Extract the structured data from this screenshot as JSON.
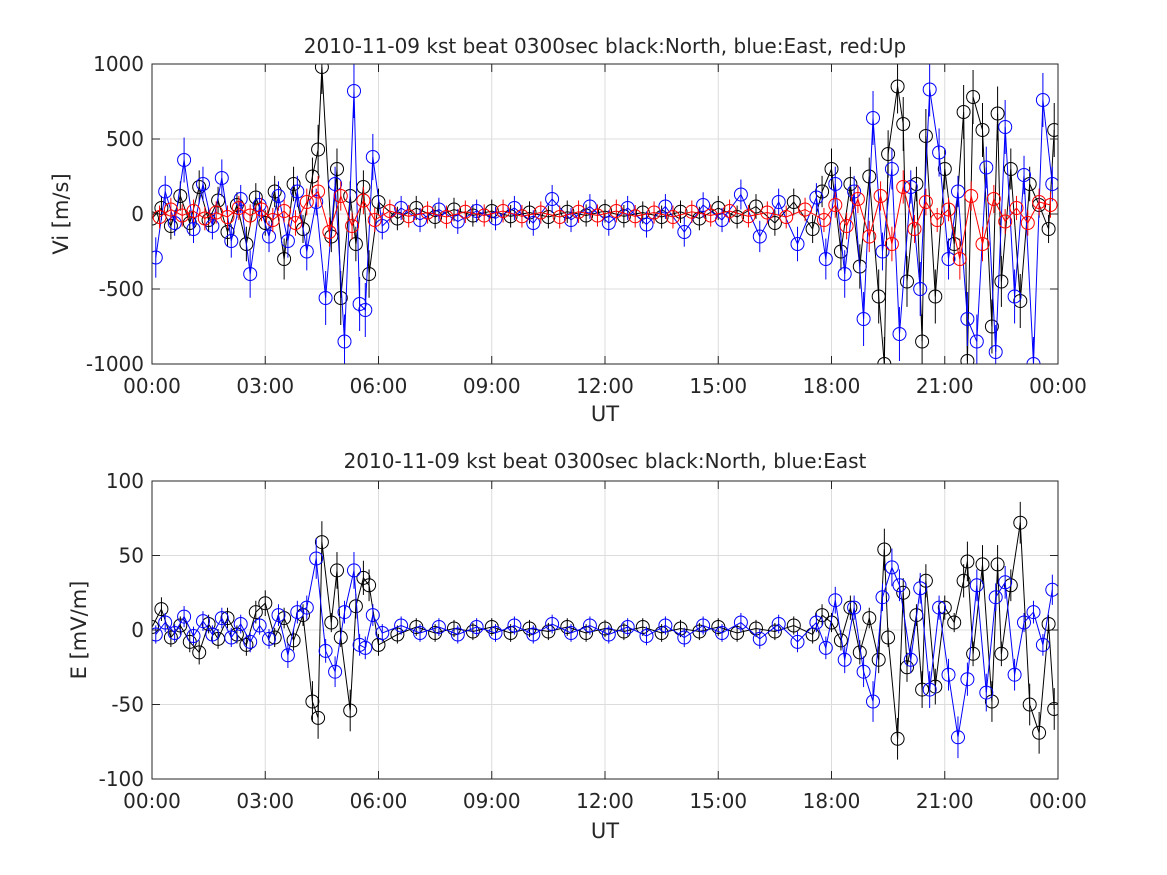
{
  "figure": {
    "panels": [
      {
        "title": "2010-11-09 kst beat 0300sec black:North, blue:East, red:Up",
        "ylabel": "Vi [m/s]",
        "xlabel": "UT"
      },
      {
        "title": "2010-11-09 kst beat 0300sec black:North, blue:East",
        "ylabel": "E [mV/m]",
        "xlabel": "UT"
      }
    ]
  },
  "chart_data": [
    {
      "type": "line",
      "title": "2010-11-09 kst beat 0300sec black:North, blue:East, red:Up",
      "xlabel": "UT",
      "ylabel": "Vi [m/s]",
      "xlim": [
        0,
        24
      ],
      "ylim": [
        -1000,
        1000
      ],
      "x_ticks": [
        0,
        3,
        6,
        9,
        12,
        15,
        18,
        21,
        24
      ],
      "x_tick_labels": [
        "00:00",
        "03:00",
        "06:00",
        "09:00",
        "12:00",
        "15:00",
        "18:00",
        "21:00",
        "00:00"
      ],
      "y_ticks": [
        1000,
        500,
        0,
        -500,
        -1000
      ],
      "y_tick_labels": [
        "1000",
        "500",
        "0",
        "-500",
        "-1000"
      ],
      "grid": true,
      "markers": "open-circle",
      "error_bars": true,
      "series": [
        {
          "color": "#000000",
          "x": [
            0.0,
            0.25,
            0.5,
            0.75,
            1.0,
            1.25,
            1.5,
            1.75,
            2.0,
            2.25,
            2.5,
            2.75,
            3.0,
            3.25,
            3.5,
            3.75,
            4.0,
            4.25,
            4.4,
            4.5,
            4.75,
            4.9,
            5.0,
            5.25,
            5.4,
            5.6,
            5.75,
            6.0,
            6.5,
            7.0,
            7.5,
            8.0,
            8.5,
            9.0,
            9.5,
            10.0,
            10.5,
            11.0,
            11.5,
            12.0,
            12.5,
            13.0,
            13.5,
            14.0,
            14.5,
            15.0,
            15.5,
            16.0,
            16.5,
            17.0,
            17.5,
            17.75,
            18.0,
            18.25,
            18.5,
            18.75,
            19.0,
            19.25,
            19.4,
            19.5,
            19.75,
            19.9,
            20.0,
            20.25,
            20.4,
            20.5,
            20.75,
            21.0,
            21.25,
            21.5,
            21.6,
            21.75,
            22.0,
            22.25,
            22.4,
            22.5,
            22.75,
            23.0,
            23.25,
            23.5,
            23.75,
            23.9
          ],
          "y": [
            -30,
            40,
            -80,
            120,
            -60,
            180,
            -40,
            90,
            -120,
            60,
            -200,
            110,
            -60,
            150,
            -300,
            200,
            -100,
            250,
            430,
            980,
            -150,
            300,
            -560,
            120,
            -200,
            180,
            -400,
            80,
            -30,
            40,
            -20,
            30,
            -10,
            20,
            -15,
            10,
            -20,
            15,
            -10,
            20,
            -15,
            10,
            -20,
            15,
            -30,
            40,
            -20,
            50,
            -60,
            80,
            -100,
            150,
            300,
            -250,
            200,
            -350,
            250,
            -550,
            -1000,
            400,
            850,
            600,
            -450,
            200,
            -850,
            520,
            -550,
            300,
            -200,
            680,
            -980,
            780,
            560,
            -750,
            670,
            -450,
            300,
            -580,
            200,
            60,
            -100,
            560
          ]
        },
        {
          "color": "#0000ff",
          "x": [
            0.1,
            0.35,
            0.6,
            0.85,
            1.1,
            1.35,
            1.6,
            1.85,
            2.1,
            2.35,
            2.6,
            2.85,
            3.1,
            3.35,
            3.6,
            3.85,
            4.1,
            4.35,
            4.6,
            4.85,
            5.1,
            5.35,
            5.5,
            5.65,
            5.85,
            6.1,
            6.6,
            7.1,
            7.6,
            8.1,
            8.6,
            9.1,
            9.6,
            10.1,
            10.6,
            11.1,
            11.6,
            12.1,
            12.6,
            13.1,
            13.6,
            14.1,
            14.6,
            15.1,
            15.6,
            16.1,
            16.6,
            17.1,
            17.6,
            17.85,
            18.1,
            18.35,
            18.6,
            18.85,
            19.1,
            19.35,
            19.6,
            19.8,
            20.1,
            20.35,
            20.6,
            20.85,
            21.1,
            21.35,
            21.6,
            21.85,
            22.1,
            22.35,
            22.6,
            22.85,
            23.1,
            23.35,
            23.6,
            23.85
          ],
          "y": [
            -290,
            150,
            -60,
            360,
            -100,
            200,
            -80,
            240,
            -180,
            100,
            -400,
            60,
            -150,
            120,
            -180,
            150,
            -250,
            80,
            -560,
            200,
            -850,
            820,
            -600,
            -640,
            380,
            -80,
            40,
            -40,
            30,
            -50,
            20,
            -30,
            40,
            -60,
            100,
            -40,
            50,
            -60,
            40,
            -70,
            50,
            -120,
            60,
            -40,
            130,
            -150,
            80,
            -200,
            110,
            -300,
            200,
            -400,
            150,
            -700,
            640,
            -250,
            300,
            -800,
            180,
            -500,
            830,
            410,
            -300,
            150,
            -700,
            -850,
            310,
            -920,
            580,
            -550,
            260,
            -1000,
            760,
            200
          ]
        },
        {
          "color": "#ff0000",
          "x": [
            0.2,
            0.5,
            0.8,
            1.1,
            1.4,
            1.7,
            2.0,
            2.3,
            2.6,
            2.9,
            3.2,
            3.5,
            3.8,
            4.1,
            4.4,
            4.7,
            5.0,
            5.3,
            5.6,
            5.9,
            6.3,
            6.8,
            7.3,
            7.8,
            8.3,
            8.8,
            9.3,
            9.8,
            10.3,
            10.8,
            11.3,
            11.8,
            12.3,
            12.8,
            13.3,
            13.8,
            14.3,
            14.8,
            15.3,
            15.8,
            16.3,
            16.8,
            17.3,
            17.8,
            18.1,
            18.4,
            18.7,
            19.0,
            19.3,
            19.6,
            19.9,
            20.2,
            20.5,
            20.8,
            21.1,
            21.4,
            21.7,
            22.0,
            22.3,
            22.6,
            22.9,
            23.2,
            23.5,
            23.8
          ],
          "y": [
            -20,
            30,
            -10,
            20,
            -30,
            10,
            -20,
            40,
            -10,
            30,
            -40,
            20,
            -60,
            80,
            150,
            -120,
            120,
            -80,
            90,
            -40,
            20,
            -15,
            10,
            -20,
            15,
            -10,
            20,
            -15,
            10,
            -20,
            15,
            -10,
            20,
            -15,
            10,
            -20,
            15,
            -10,
            20,
            -15,
            10,
            -20,
            30,
            -40,
            60,
            -80,
            100,
            -150,
            120,
            -200,
            180,
            -100,
            80,
            -40,
            30,
            -300,
            120,
            -200,
            100,
            -50,
            40,
            -60,
            80,
            60
          ]
        }
      ]
    },
    {
      "type": "line",
      "title": "2010-11-09 kst beat 0300sec black:North, blue:East",
      "xlabel": "UT",
      "ylabel": "E [mV/m]",
      "xlim": [
        0,
        24
      ],
      "ylim": [
        -100,
        100
      ],
      "x_ticks": [
        0,
        3,
        6,
        9,
        12,
        15,
        18,
        21,
        24
      ],
      "x_tick_labels": [
        "00:00",
        "03:00",
        "06:00",
        "09:00",
        "12:00",
        "15:00",
        "18:00",
        "21:00",
        "00:00"
      ],
      "y_ticks": [
        100,
        50,
        0,
        -50,
        -100
      ],
      "y_tick_labels": [
        "100",
        "50",
        "0",
        "-50",
        "-100"
      ],
      "grid": true,
      "markers": "open-circle",
      "error_bars": true,
      "series": [
        {
          "color": "#000000",
          "x": [
            0.0,
            0.25,
            0.5,
            0.75,
            1.0,
            1.25,
            1.5,
            1.75,
            2.0,
            2.25,
            2.5,
            2.75,
            3.0,
            3.25,
            3.5,
            3.75,
            4.0,
            4.25,
            4.4,
            4.5,
            4.75,
            4.9,
            5.0,
            5.25,
            5.4,
            5.6,
            5.75,
            6.0,
            6.5,
            7.0,
            7.5,
            8.0,
            8.5,
            9.0,
            9.5,
            10.0,
            10.5,
            11.0,
            11.5,
            12.0,
            12.5,
            13.0,
            13.5,
            14.0,
            14.5,
            15.0,
            15.5,
            16.0,
            16.5,
            17.0,
            17.5,
            17.75,
            18.0,
            18.25,
            18.5,
            18.75,
            19.0,
            19.25,
            19.4,
            19.5,
            19.75,
            19.9,
            20.0,
            20.25,
            20.4,
            20.5,
            20.75,
            21.0,
            21.25,
            21.5,
            21.6,
            21.75,
            22.0,
            22.25,
            22.4,
            22.5,
            22.75,
            23.0,
            23.25,
            23.5,
            23.75,
            23.9
          ],
          "y": [
            2,
            14,
            -5,
            3,
            -8,
            -15,
            4,
            -6,
            8,
            -3,
            -10,
            12,
            18,
            -5,
            8,
            -7,
            10,
            -48,
            -59,
            59,
            5,
            40,
            -5,
            -54,
            16,
            35,
            30,
            -10,
            -3,
            2,
            -2,
            1,
            -1,
            2,
            -2,
            1,
            -1,
            2,
            -2,
            1,
            -1,
            2,
            -2,
            1,
            -1,
            2,
            -2,
            1,
            -1,
            3,
            -3,
            10,
            5,
            -7,
            15,
            -15,
            8,
            -20,
            54,
            -5,
            -73,
            25,
            -25,
            10,
            -40,
            33,
            -38,
            15,
            5,
            33,
            46,
            -16,
            44,
            -48,
            44,
            -16,
            30,
            72,
            -50,
            -69,
            4,
            -53
          ]
        },
        {
          "color": "#0000ff",
          "x": [
            0.1,
            0.35,
            0.6,
            0.85,
            1.1,
            1.35,
            1.6,
            1.85,
            2.1,
            2.35,
            2.6,
            2.85,
            3.1,
            3.35,
            3.6,
            3.85,
            4.1,
            4.35,
            4.6,
            4.85,
            5.1,
            5.35,
            5.5,
            5.65,
            5.85,
            6.1,
            6.6,
            7.1,
            7.6,
            8.1,
            8.6,
            9.1,
            9.6,
            10.1,
            10.6,
            11.1,
            11.6,
            12.1,
            12.6,
            13.1,
            13.6,
            14.1,
            14.6,
            15.1,
            15.6,
            16.1,
            16.6,
            17.1,
            17.6,
            17.85,
            18.1,
            18.35,
            18.6,
            18.85,
            19.1,
            19.35,
            19.6,
            19.8,
            20.1,
            20.35,
            20.6,
            20.85,
            21.1,
            21.35,
            21.6,
            21.85,
            22.1,
            22.35,
            22.6,
            22.85,
            23.1,
            23.35,
            23.6,
            23.85
          ],
          "y": [
            -3,
            5,
            -2,
            9,
            -4,
            6,
            -3,
            8,
            -5,
            4,
            -8,
            3,
            -6,
            10,
            -17,
            12,
            15,
            48,
            -14,
            -28,
            12,
            40,
            -10,
            -12,
            10,
            -2,
            3,
            -2,
            2,
            -3,
            2,
            -2,
            3,
            -3,
            4,
            -2,
            3,
            -3,
            2,
            -4,
            3,
            -5,
            3,
            -2,
            5,
            -6,
            4,
            -8,
            5,
            -12,
            20,
            -20,
            15,
            -28,
            -48,
            22,
            42,
            30,
            -20,
            28,
            -40,
            15,
            -30,
            -72,
            -33,
            30,
            -42,
            22,
            32,
            -30,
            5,
            12,
            -10,
            27
          ]
        }
      ]
    }
  ]
}
